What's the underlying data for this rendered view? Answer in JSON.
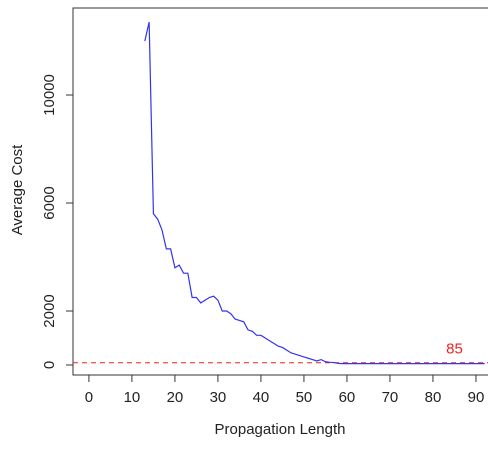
{
  "chart_data": {
    "type": "line",
    "x_label": "Propagation Length",
    "y_label": "Average Cost",
    "x": [
      13,
      14,
      15,
      16,
      17,
      18,
      19,
      20,
      21,
      22,
      23,
      24,
      25,
      26,
      27,
      28,
      29,
      30,
      31,
      32,
      33,
      34,
      35,
      36,
      37,
      38,
      39,
      40,
      41,
      42,
      43,
      44,
      45,
      46,
      47,
      48,
      49,
      50,
      51,
      52,
      53,
      54,
      55,
      56,
      57,
      58,
      59,
      60,
      61,
      62,
      63,
      64,
      65,
      66,
      67,
      68,
      69,
      70,
      71,
      72,
      73,
      74,
      75,
      76,
      77,
      78,
      79,
      80,
      81,
      82,
      83,
      84,
      85,
      86,
      87,
      88,
      89,
      90,
      91,
      92
    ],
    "series": [
      {
        "name": "Average Cost",
        "color": "#3333ee",
        "values": [
          12000,
          12700,
          5600,
          5400,
          5000,
          4300,
          4300,
          3600,
          3700,
          3400,
          3400,
          2500,
          2500,
          2300,
          2400,
          2500,
          2550,
          2400,
          2000,
          2000,
          1900,
          1700,
          1650,
          1600,
          1300,
          1250,
          1100,
          1100,
          1000,
          900,
          800,
          700,
          650,
          550,
          450,
          400,
          350,
          300,
          250,
          200,
          150,
          200,
          120,
          100,
          90,
          60,
          50,
          50,
          50,
          50,
          50,
          50,
          50,
          50,
          50,
          50,
          50,
          50,
          50,
          50,
          50,
          50,
          50,
          50,
          50,
          50,
          50,
          50,
          50,
          50,
          50,
          50,
          50,
          50,
          50,
          50,
          50,
          50,
          50,
          50
        ]
      }
    ],
    "hline": {
      "y": 85,
      "color": "#ee2222",
      "label": "85",
      "label_x": 85
    },
    "xlim": [
      -3.7,
      92.8
    ],
    "ylim": [
      -370,
      13222
    ],
    "xticks": [
      0,
      10,
      20,
      30,
      40,
      50,
      60,
      70,
      80,
      90
    ],
    "yticks": [
      0,
      2000,
      6000,
      10000
    ]
  }
}
